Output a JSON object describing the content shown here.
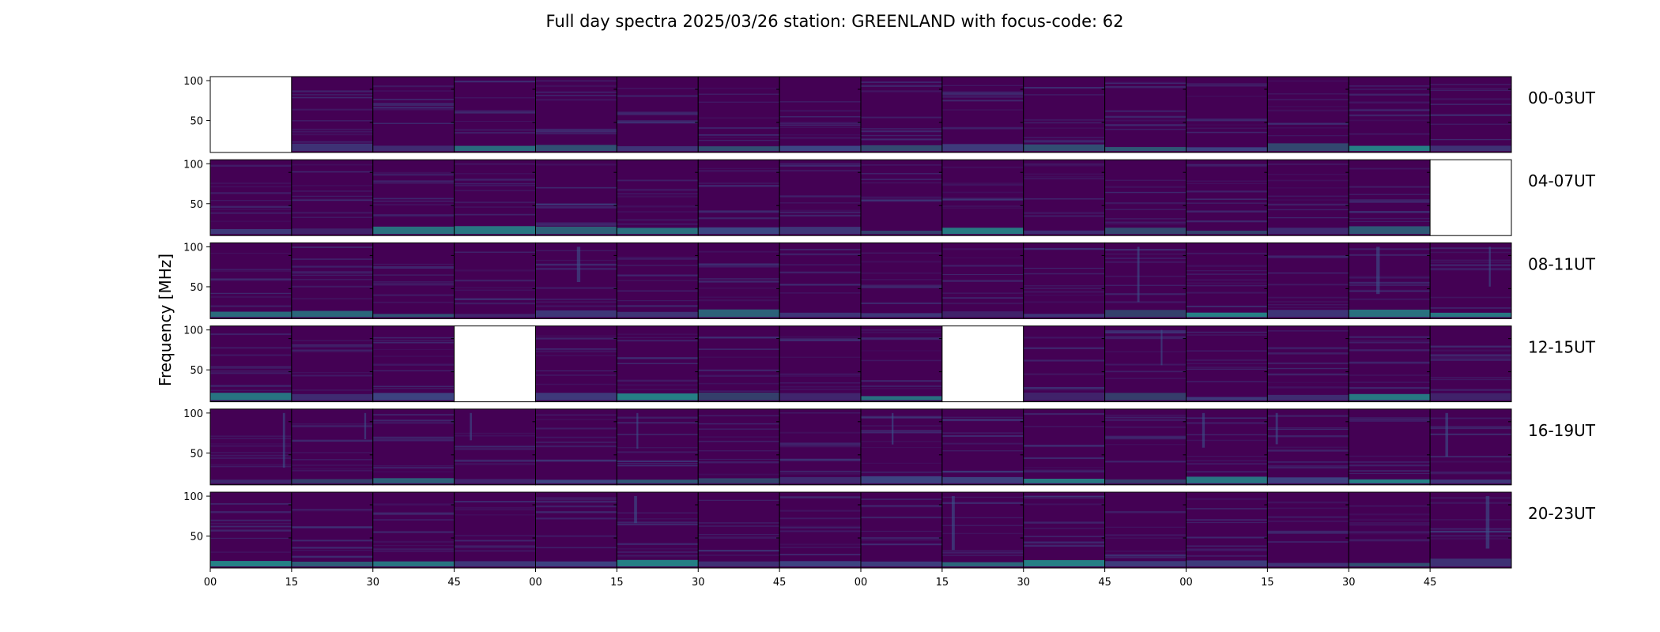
{
  "chart_data": {
    "type": "heatmap",
    "title": "Full day spectra 2025/03/26 station: GREENLAND with focus-code: 62",
    "ylabel": "Frequency [MHz]",
    "ylim": [
      10,
      105
    ],
    "yticks": [
      50,
      100
    ],
    "xticks": [
      "00",
      "15",
      "30",
      "45",
      "00",
      "15",
      "30",
      "45",
      "00",
      "15",
      "30",
      "45",
      "00",
      "15",
      "30",
      "45"
    ],
    "panels_per_row": 16,
    "rows": [
      {
        "label": "00-03UT",
        "missing": [
          0
        ]
      },
      {
        "label": "04-07UT",
        "missing": [
          15
        ]
      },
      {
        "label": "08-11UT",
        "missing": []
      },
      {
        "label": "12-15UT",
        "missing": [
          3,
          9
        ]
      },
      {
        "label": "16-19UT",
        "missing": []
      },
      {
        "label": "20-23UT",
        "missing": []
      }
    ],
    "colormap": [
      "#440154",
      "#3b528b",
      "#21918c",
      "#5ec962"
    ]
  }
}
